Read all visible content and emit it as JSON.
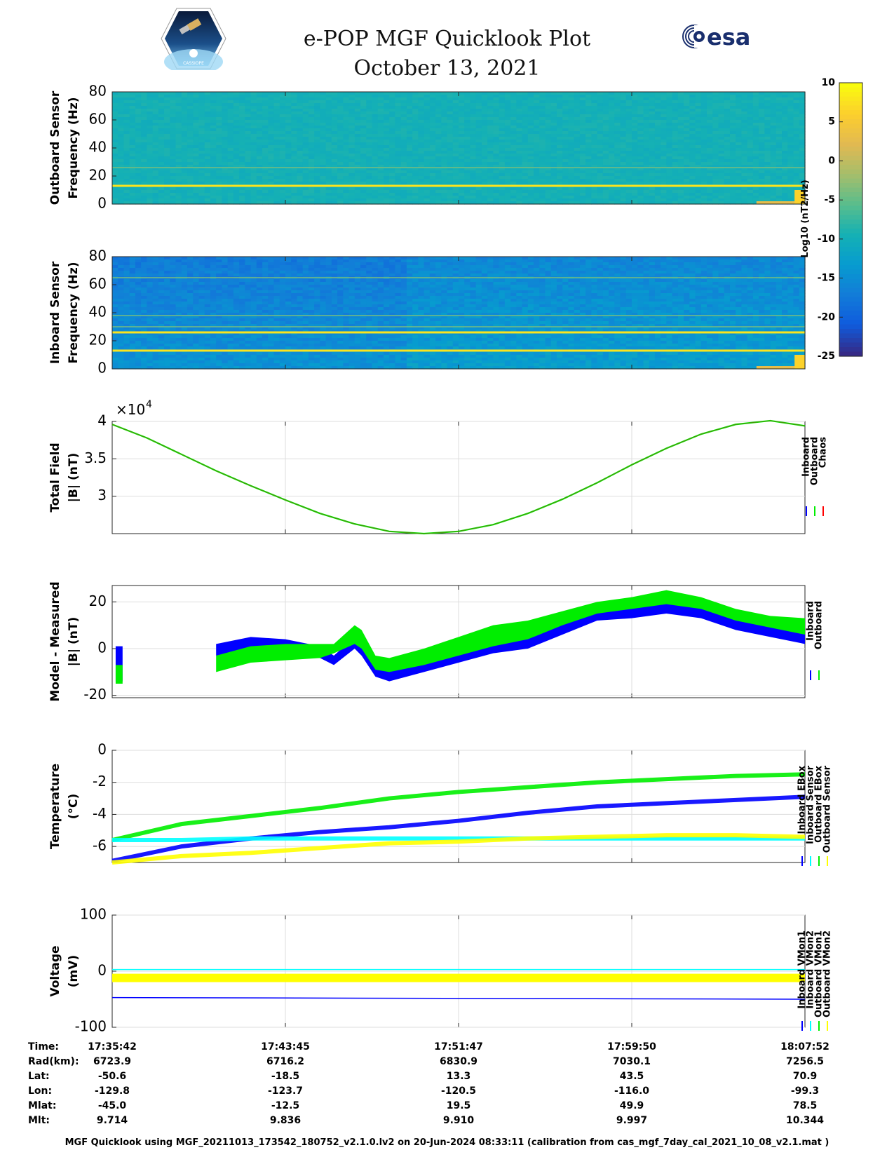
{
  "title": {
    "line1": "e-POP MGF Quicklook Plot",
    "line2": "October 13, 2021"
  },
  "logos": {
    "left": "cassiope-logo",
    "left_text": "CASSIOPE",
    "right": "esa-logo",
    "right_text": "esa"
  },
  "colorbar": {
    "label": "Log10 (nT2/Hz)",
    "ticks": [
      10,
      5,
      0,
      -5,
      -10,
      -15,
      -20,
      -25
    ],
    "range": [
      -25,
      10
    ]
  },
  "chart_data": [
    {
      "type": "heatmap",
      "ylabel_line1": "Outboard Sensor",
      "ylabel_line2": "Frequency (Hz)",
      "ylim": [
        0,
        80
      ],
      "yticks": [
        80,
        60,
        40,
        20,
        0
      ],
      "lines_hz": [
        {
          "freq": 13,
          "level": "high"
        },
        {
          "freq": 26,
          "level": "mid"
        }
      ]
    },
    {
      "type": "heatmap",
      "ylabel_line1": "Inboard Sensor",
      "ylabel_line2": "Frequency (Hz)",
      "ylim": [
        0,
        80
      ],
      "yticks": [
        80,
        60,
        40,
        20,
        0
      ],
      "lines_hz": [
        {
          "freq": 13,
          "level": "high"
        },
        {
          "freq": 26,
          "level": "high"
        },
        {
          "freq": 38,
          "level": "mid"
        },
        {
          "freq": 65,
          "level": "mid"
        },
        {
          "freq": 30,
          "level": "mid"
        }
      ]
    },
    {
      "type": "line",
      "ylabel_line1": "Total Field",
      "ylabel_line2": "|B| (nT)",
      "exponent": "×10",
      "exponent_power": "4",
      "ylim": [
        2.5,
        4.0
      ],
      "yticks": [
        {
          "value": 4,
          "label": "4"
        },
        {
          "value": 3.5,
          "label": "3.5"
        },
        {
          "value": 3,
          "label": "3"
        }
      ],
      "legend": [
        {
          "name": "Inboard",
          "color": "#0000ff"
        },
        {
          "name": "Outboard",
          "color": "#00ee00"
        },
        {
          "name": "Chaos",
          "color": "#ff0000"
        }
      ],
      "x": [
        0,
        5,
        10,
        15,
        20,
        25,
        30,
        35,
        40,
        45,
        50,
        55,
        60,
        65,
        70,
        75,
        80,
        85,
        90,
        95,
        100
      ],
      "series": [
        {
          "values": [
            3.96,
            3.78,
            3.56,
            3.34,
            3.14,
            2.95,
            2.77,
            2.63,
            2.53,
            2.5,
            2.53,
            2.62,
            2.77,
            2.96,
            3.18,
            3.42,
            3.64,
            3.83,
            3.96,
            4.01,
            3.94
          ],
          "color": "#00ee00"
        },
        {
          "values": [
            3.96,
            3.78,
            3.56,
            3.34,
            3.14,
            2.95,
            2.77,
            2.63,
            2.53,
            2.5,
            2.53,
            2.62,
            2.77,
            2.96,
            3.18,
            3.42,
            3.64,
            3.83,
            3.96,
            4.01,
            3.94
          ],
          "color": "#8b4513"
        }
      ]
    },
    {
      "type": "area",
      "ylabel_line1": "Model - Measured",
      "ylabel_line2": "|B| (nT)",
      "ylim": [
        -21,
        27
      ],
      "yticks": [
        {
          "value": 20,
          "label": "20"
        },
        {
          "value": 0,
          "label": "0"
        },
        {
          "value": -20,
          "label": "-20"
        }
      ],
      "legend": [
        {
          "name": "Inboard",
          "color": "#0000ff"
        },
        {
          "name": "Outboard",
          "color": "#00ee00"
        }
      ],
      "segments": [
        {
          "x": [
            0.5,
            1.0,
            1.5
          ],
          "inboard_low": [
            -14,
            -14,
            -14
          ],
          "inboard_high": [
            1,
            1,
            1
          ],
          "outboard_low": [
            -15,
            -15,
            -15
          ],
          "outboard_high": [
            -7,
            -7,
            -7
          ]
        },
        {
          "x": [
            15,
            20,
            25,
            30,
            32,
            35,
            36,
            38,
            40,
            45,
            50,
            55,
            60,
            65,
            70,
            75,
            80,
            85,
            90,
            95,
            100
          ],
          "inboard_low": [
            -3,
            -2,
            -1,
            -4,
            -7,
            0,
            -3,
            -12,
            -14,
            -10,
            -6,
            -2,
            0,
            6,
            12,
            13,
            15,
            13,
            8,
            5,
            2
          ],
          "inboard_high": [
            2,
            5,
            4,
            1,
            -3,
            5,
            2,
            -6,
            -8,
            -4,
            0,
            5,
            8,
            13,
            18,
            22,
            23,
            20,
            14,
            11,
            8
          ],
          "outboard_low": [
            -10,
            -6,
            -5,
            -4,
            -2,
            2,
            0,
            -9,
            -10,
            -7,
            -3,
            1,
            4,
            10,
            15,
            17,
            19,
            17,
            12,
            9,
            6
          ],
          "outboard_high": [
            -3,
            1,
            2,
            2,
            2,
            10,
            8,
            -3,
            -4,
            0,
            5,
            10,
            12,
            16,
            20,
            22,
            25,
            22,
            17,
            14,
            13
          ]
        }
      ]
    },
    {
      "type": "line",
      "ylabel_line1": "Temperature",
      "ylabel_line2": "(°C)",
      "ylim": [
        -7,
        0
      ],
      "yticks": [
        {
          "value": 0,
          "label": "0"
        },
        {
          "value": -2,
          "label": "-2"
        },
        {
          "value": -4,
          "label": "-4"
        },
        {
          "value": -6,
          "label": "-6"
        }
      ],
      "legend": [
        {
          "name": "Inboard EBox",
          "color": "#0000ff"
        },
        {
          "name": "Inboard Sensor",
          "color": "#00ffff"
        },
        {
          "name": "Outboard EBox",
          "color": "#00ee00"
        },
        {
          "name": "Outboard Sensor",
          "color": "#ffff00"
        }
      ],
      "x": [
        0,
        10,
        20,
        30,
        40,
        50,
        60,
        70,
        80,
        90,
        100
      ],
      "series": [
        {
          "name": "Outboard EBox",
          "color": "#00ee00",
          "values": [
            -5.6,
            -4.6,
            -4.1,
            -3.6,
            -3.0,
            -2.6,
            -2.3,
            -2.0,
            -1.8,
            -1.6,
            -1.5
          ]
        },
        {
          "name": "Inboard EBox",
          "color": "#0000ff",
          "values": [
            -6.9,
            -6.0,
            -5.5,
            -5.1,
            -4.8,
            -4.4,
            -3.9,
            -3.5,
            -3.3,
            -3.1,
            -2.9
          ]
        },
        {
          "name": "Inboard Sensor",
          "color": "#00ffff",
          "values": [
            -5.6,
            -5.6,
            -5.5,
            -5.5,
            -5.5,
            -5.5,
            -5.5,
            -5.5,
            -5.5,
            -5.5,
            -5.5
          ]
        },
        {
          "name": "Outboard Sensor",
          "color": "#ffff00",
          "values": [
            -7.0,
            -6.6,
            -6.4,
            -6.1,
            -5.8,
            -5.7,
            -5.5,
            -5.4,
            -5.3,
            -5.3,
            -5.4
          ]
        }
      ]
    },
    {
      "type": "line",
      "ylabel_line1": "Voltage",
      "ylabel_line2": "(mV)",
      "ylim": [
        -100,
        100
      ],
      "yticks": [
        {
          "value": 100,
          "label": "100"
        },
        {
          "value": 0,
          "label": "0"
        },
        {
          "value": -100,
          "label": "-100"
        }
      ],
      "legend": [
        {
          "name": "Inboard VMon1",
          "color": "#0000ff"
        },
        {
          "name": "Inboard VMon2",
          "color": "#00ffff"
        },
        {
          "name": "Outboard VMon1",
          "color": "#00ee00"
        },
        {
          "name": "Outboard VMon2",
          "color": "#ffff00"
        }
      ],
      "x": [
        0,
        100
      ],
      "series": [
        {
          "name": "Inboard VMon2",
          "color": "#00ffff",
          "values": [
            3,
            3
          ]
        },
        {
          "name": "Outboard VMon1",
          "color": "#00ee00",
          "values": [
            -8,
            -8
          ]
        },
        {
          "name": "Outboard VMon2",
          "color": "#ffff00",
          "values": [
            -12,
            -12
          ]
        },
        {
          "name": "Inboard VMon1",
          "color": "#0000ff",
          "values": [
            -47,
            -50
          ]
        }
      ]
    }
  ],
  "x_axis": {
    "label_column": [
      "Time:",
      "Rad(km):",
      "Lat:",
      "Lon:",
      "Mlat:",
      "Mlt:"
    ],
    "ticks": [
      {
        "pos": 0,
        "values": [
          "17:35:42",
          "6723.9",
          "-50.6",
          "-129.8",
          "-45.0",
          "9.714"
        ]
      },
      {
        "pos": 25,
        "values": [
          "17:43:45",
          "6716.2",
          "-18.5",
          "-123.7",
          "-12.5",
          "9.836"
        ]
      },
      {
        "pos": 50,
        "values": [
          "17:51:47",
          "6830.9",
          "13.3",
          "-120.5",
          "19.5",
          "9.910"
        ]
      },
      {
        "pos": 75,
        "values": [
          "17:59:50",
          "7030.1",
          "43.5",
          "-116.0",
          "49.9",
          "9.997"
        ]
      },
      {
        "pos": 100,
        "values": [
          "18:07:52",
          "7256.5",
          "70.9",
          "-99.3",
          "78.5",
          "10.344"
        ]
      }
    ]
  },
  "footer": "MGF Quicklook using MGF_20211013_173542_180752_v2.1.0.lv2 on 20-Jun-2024 08:33:11 (calibration from cas_mgf_7day_cal_2021_10_08_v2.1.mat )"
}
